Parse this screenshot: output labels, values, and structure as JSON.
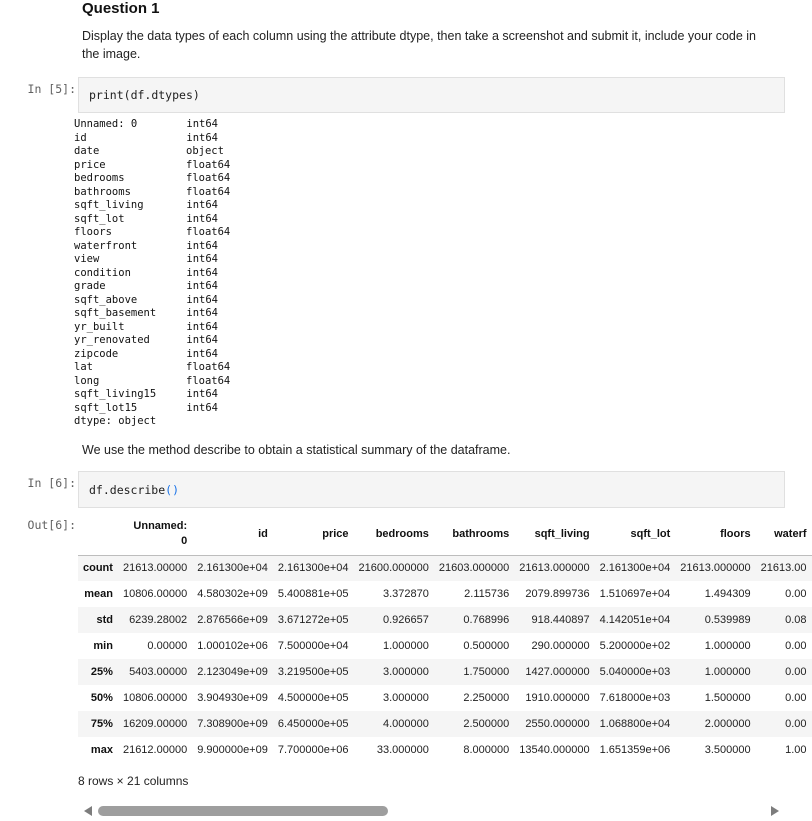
{
  "question": {
    "title": "Question 1",
    "instruction": "Display the data types of each column using the attribute dtype, then take a screenshot and submit it, include your code in the image."
  },
  "cell5": {
    "prompt": "In [5]:",
    "code_fn": "print",
    "code_open": "(",
    "code_arg": "df.dtypes",
    "code_close": ")"
  },
  "dtypes": [
    {
      "name": "Unnamed: 0",
      "type": "int64"
    },
    {
      "name": "id",
      "type": "int64"
    },
    {
      "name": "date",
      "type": "object"
    },
    {
      "name": "price",
      "type": "float64"
    },
    {
      "name": "bedrooms",
      "type": "float64"
    },
    {
      "name": "bathrooms",
      "type": "float64"
    },
    {
      "name": "sqft_living",
      "type": "int64"
    },
    {
      "name": "sqft_lot",
      "type": "int64"
    },
    {
      "name": "floors",
      "type": "float64"
    },
    {
      "name": "waterfront",
      "type": "int64"
    },
    {
      "name": "view",
      "type": "int64"
    },
    {
      "name": "condition",
      "type": "int64"
    },
    {
      "name": "grade",
      "type": "int64"
    },
    {
      "name": "sqft_above",
      "type": "int64"
    },
    {
      "name": "sqft_basement",
      "type": "int64"
    },
    {
      "name": "yr_built",
      "type": "int64"
    },
    {
      "name": "yr_renovated",
      "type": "int64"
    },
    {
      "name": "zipcode",
      "type": "int64"
    },
    {
      "name": "lat",
      "type": "float64"
    },
    {
      "name": "long",
      "type": "float64"
    },
    {
      "name": "sqft_living15",
      "type": "int64"
    },
    {
      "name": "sqft_lot15",
      "type": "int64"
    }
  ],
  "dtype_footer": "dtype: object",
  "describe_note": "We use the method describe to obtain a statistical summary of the dataframe.",
  "cell6": {
    "prompt": "In [6]:",
    "code_obj": "df.describe",
    "code_parens": "()",
    "out_prompt": "Out[6]:"
  },
  "table": {
    "header_line1": "Unnamed:",
    "header_line2": "0",
    "columns": [
      "id",
      "price",
      "bedrooms",
      "bathrooms",
      "sqft_living",
      "sqft_lot",
      "floors",
      "waterf"
    ],
    "rows": [
      {
        "label": "count",
        "cells": [
          "21613.00000",
          "2.161300e+04",
          "2.161300e+04",
          "21600.000000",
          "21603.000000",
          "21613.000000",
          "2.161300e+04",
          "21613.000000",
          "21613.00"
        ]
      },
      {
        "label": "mean",
        "cells": [
          "10806.00000",
          "4.580302e+09",
          "5.400881e+05",
          "3.372870",
          "2.115736",
          "2079.899736",
          "1.510697e+04",
          "1.494309",
          "0.00"
        ]
      },
      {
        "label": "std",
        "cells": [
          "6239.28002",
          "2.876566e+09",
          "3.671272e+05",
          "0.926657",
          "0.768996",
          "918.440897",
          "4.142051e+04",
          "0.539989",
          "0.08"
        ]
      },
      {
        "label": "min",
        "cells": [
          "0.00000",
          "1.000102e+06",
          "7.500000e+04",
          "1.000000",
          "0.500000",
          "290.000000",
          "5.200000e+02",
          "1.000000",
          "0.00"
        ]
      },
      {
        "label": "25%",
        "cells": [
          "5403.00000",
          "2.123049e+09",
          "3.219500e+05",
          "3.000000",
          "1.750000",
          "1427.000000",
          "5.040000e+03",
          "1.000000",
          "0.00"
        ]
      },
      {
        "label": "50%",
        "cells": [
          "10806.00000",
          "3.904930e+09",
          "4.500000e+05",
          "3.000000",
          "2.250000",
          "1910.000000",
          "7.618000e+03",
          "1.500000",
          "0.00"
        ]
      },
      {
        "label": "75%",
        "cells": [
          "16209.00000",
          "7.308900e+09",
          "6.450000e+05",
          "4.000000",
          "2.500000",
          "2550.000000",
          "1.068800e+04",
          "2.000000",
          "0.00"
        ]
      },
      {
        "label": "max",
        "cells": [
          "21612.00000",
          "9.900000e+09",
          "7.700000e+06",
          "33.000000",
          "8.000000",
          "13540.000000",
          "1.651359e+06",
          "3.500000",
          "1.00"
        ]
      }
    ],
    "summary": "8 rows × 21 columns"
  },
  "colors": {
    "cell_bg": "#f5f5f5",
    "prompt": "#616161",
    "paren_accent": "#1a73e8",
    "scroll_thumb": "#9e9e9e"
  },
  "icons": {
    "scroll_left": "triangle-left-icon",
    "scroll_right": "triangle-right-icon"
  }
}
